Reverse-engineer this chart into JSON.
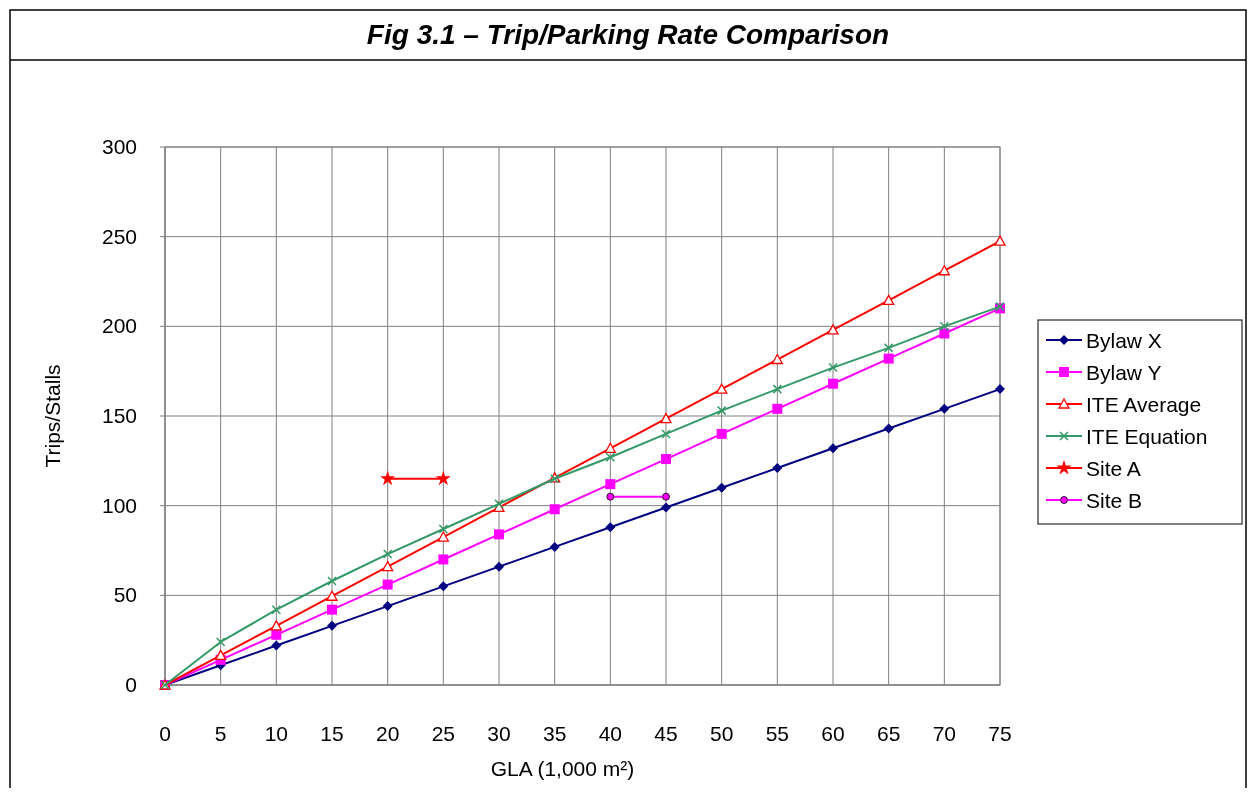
{
  "chart_data": {
    "type": "line",
    "title": "Fig 3.1 – Trip/Parking Rate Comparison",
    "xlabel": "GLA (1,000 m²)",
    "ylabel": "Trips/Stalls",
    "categories": [
      "0",
      "5",
      "10",
      "15",
      "20",
      "25",
      "30",
      "35",
      "40",
      "45",
      "50",
      "55",
      "60",
      "65",
      "70",
      "75"
    ],
    "ylim": [
      0,
      300
    ],
    "yticks": [
      0,
      50,
      100,
      150,
      200,
      250,
      300
    ],
    "grid": true,
    "legend": "right",
    "series": [
      {
        "name": "Bylaw X",
        "color": "#000080",
        "marker": "diamond",
        "values": [
          0,
          11,
          22,
          33,
          44,
          55,
          66,
          77,
          88,
          99,
          110,
          121,
          132,
          143,
          154,
          165
        ]
      },
      {
        "name": "Bylaw Y",
        "color": "#ff00ff",
        "marker": "square",
        "values": [
          0,
          14,
          28,
          42,
          56,
          70,
          84,
          98,
          112,
          126,
          140,
          154,
          168,
          182,
          196,
          210
        ]
      },
      {
        "name": "ITE Average",
        "color": "#ff0000",
        "marker": "triangle",
        "values": [
          0,
          16.5,
          33,
          49.5,
          66,
          82.5,
          99,
          115.5,
          132,
          148.5,
          165,
          181.5,
          198,
          214.5,
          231,
          247.5
        ]
      },
      {
        "name": "ITE Equation",
        "color": "#339966",
        "marker": "cross",
        "values": [
          0,
          24,
          42,
          58,
          73,
          87,
          101,
          115,
          127,
          140,
          153,
          165,
          177,
          188,
          200,
          211
        ]
      },
      {
        "name": "Site A",
        "color": "#ff0000",
        "marker": "star",
        "values": [
          null,
          null,
          null,
          null,
          115,
          115,
          null,
          null,
          null,
          null,
          null,
          null,
          null,
          null,
          null,
          null
        ]
      },
      {
        "name": "Site B",
        "color": "#ff00ff",
        "marker": "circle",
        "values": [
          null,
          null,
          null,
          null,
          null,
          null,
          null,
          null,
          105,
          105,
          null,
          null,
          null,
          null,
          null,
          null
        ]
      }
    ]
  }
}
